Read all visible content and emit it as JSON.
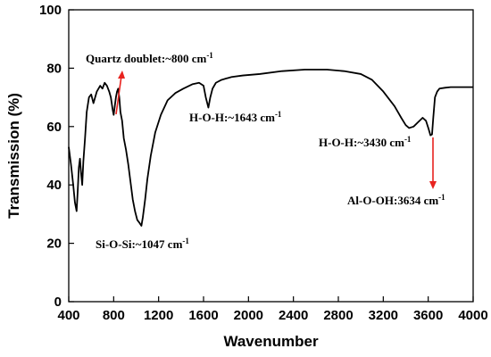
{
  "chart_data": {
    "type": "line",
    "xlabel": "Wavenumber",
    "ylabel": "Transmission (%)",
    "xlim": [
      400,
      4000
    ],
    "ylim": [
      0,
      100
    ],
    "xticks": [
      400,
      800,
      1200,
      1600,
      2000,
      2400,
      2800,
      3200,
      3600,
      4000
    ],
    "yticks": [
      0,
      20,
      40,
      60,
      80,
      100
    ],
    "grid": false,
    "line_color": "#000000",
    "arrow_color": "#e8231f",
    "series": [
      {
        "x": [
          400,
          420,
          440,
          455,
          470,
          480,
          490,
          500,
          510,
          520,
          530,
          545,
          560,
          580,
          600,
          620,
          650,
          680,
          700,
          720,
          740,
          760,
          775,
          790,
          800,
          810,
          820,
          830,
          840,
          850,
          860,
          875,
          890,
          910,
          930,
          950,
          970,
          990,
          1010,
          1030,
          1047,
          1060,
          1080,
          1100,
          1130,
          1170,
          1220,
          1280,
          1350,
          1420,
          1500,
          1560,
          1600,
          1620,
          1643,
          1660,
          1680,
          1710,
          1760,
          1850,
          1950,
          2100,
          2300,
          2500,
          2700,
          2850,
          3000,
          3100,
          3200,
          3300,
          3360,
          3400,
          3430,
          3470,
          3510,
          3550,
          3580,
          3605,
          3620,
          3634,
          3645,
          3660,
          3680,
          3700,
          3750,
          3800,
          3900,
          4000
        ],
        "y": [
          53,
          47,
          40,
          34,
          31,
          38,
          46,
          49,
          44,
          40,
          48,
          56,
          65,
          70,
          71,
          68,
          72,
          74,
          73,
          75,
          74,
          72,
          70,
          66,
          64,
          67,
          70,
          72,
          73,
          70,
          65,
          62,
          56,
          52,
          47,
          41,
          35,
          31,
          28,
          27,
          26,
          29,
          35,
          42,
          50,
          58,
          64,
          69,
          71.5,
          73,
          74.5,
          75,
          74,
          70,
          66.5,
          70,
          73,
          75,
          76,
          77,
          77.5,
          78,
          79,
          79.5,
          79.5,
          79,
          78,
          76,
          72,
          67,
          63,
          60.5,
          59.5,
          60,
          61.5,
          63,
          62,
          59,
          57,
          57.3,
          63,
          70,
          72,
          73,
          73.3,
          73.5,
          73.5,
          73.5
        ]
      }
    ],
    "annotations": [
      {
        "text": "Quartz doublet:~800 cm",
        "sup": "-1"
      },
      {
        "text": "H-O-H:~1643 cm",
        "sup": "-1"
      },
      {
        "text": "H-O-H:~3430 cm",
        "sup": "-1"
      },
      {
        "text": "Al-O-OH:3634 cm",
        "sup": "-1"
      },
      {
        "text": "Si-O-Si:~1047 cm",
        "sup": "-1"
      }
    ]
  }
}
